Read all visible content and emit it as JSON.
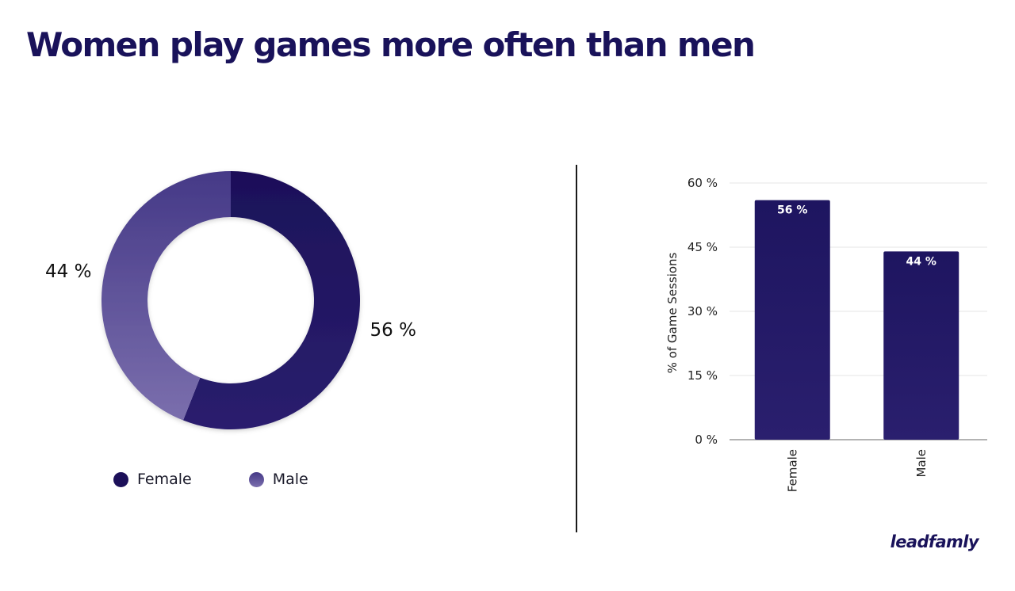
{
  "title": "Women play games more often than men",
  "brand": "leadfamly",
  "colors": {
    "female": "#1c1059",
    "female_end": "#2a1f6e",
    "male_start": "#453987",
    "male_end": "#7b6fad",
    "bar": "#1e1560",
    "bar_end": "#2a1f6e",
    "text": "#19125a",
    "grid": "#e6e6e6",
    "axis_line": "#9a9a9a"
  },
  "chart_data": [
    {
      "type": "pie",
      "variant": "donut",
      "slices": [
        {
          "name": "Female",
          "value": 56,
          "label": "56 %"
        },
        {
          "name": "Male",
          "value": 44,
          "label": "44 %"
        }
      ],
      "legend": {
        "position": "bottom",
        "items": [
          {
            "name": "Female",
            "color": "#1c1059"
          },
          {
            "name": "Male",
            "color": "#5e5299"
          }
        ]
      }
    },
    {
      "type": "bar",
      "categories": [
        "Female",
        "Male"
      ],
      "values": [
        56,
        44
      ],
      "data_labels": [
        "56 %",
        "44 %"
      ],
      "ylabel": "% of Game Sessions",
      "ylim": [
        0,
        60
      ],
      "yticks": [
        0,
        15,
        30,
        45,
        60
      ],
      "ytick_labels": [
        "0 %",
        "15 %",
        "30 %",
        "45 %",
        "60 %"
      ],
      "grid": true
    }
  ]
}
